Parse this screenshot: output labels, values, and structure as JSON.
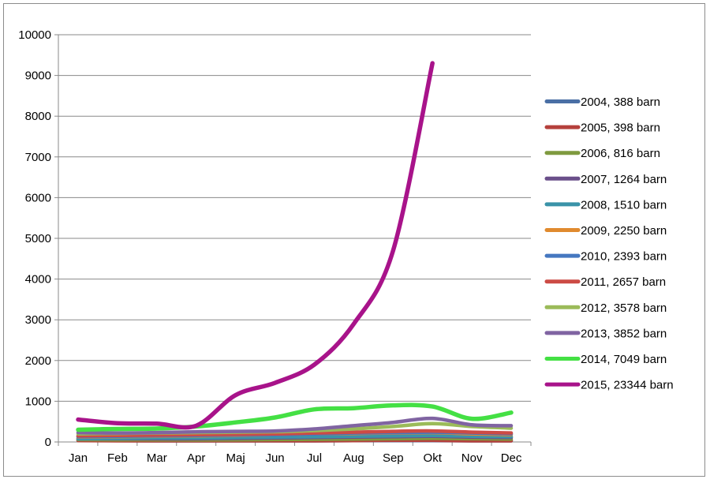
{
  "chart_data": {
    "type": "line",
    "title": "",
    "xlabel": "",
    "ylabel": "",
    "ylim": [
      0,
      10000
    ],
    "yticks": [
      0,
      1000,
      2000,
      3000,
      4000,
      5000,
      6000,
      7000,
      8000,
      9000,
      10000
    ],
    "grid": "horizontal",
    "legend_position": "right",
    "categories": [
      "Jan",
      "Feb",
      "Mar",
      "Apr",
      "Maj",
      "Jun",
      "Jul",
      "Aug",
      "Sep",
      "Okt",
      "Nov",
      "Dec"
    ],
    "series": [
      {
        "name": "2004, 388 barn",
        "color": "#4a6fa5",
        "values": [
          40,
          35,
          30,
          30,
          30,
          30,
          30,
          35,
          35,
          35,
          30,
          30
        ]
      },
      {
        "name": "2005, 398 barn",
        "color": "#b5403c",
        "values": [
          35,
          30,
          30,
          30,
          30,
          30,
          30,
          35,
          40,
          40,
          30,
          30
        ]
      },
      {
        "name": "2006, 816 barn",
        "color": "#7f9a3f",
        "values": [
          60,
          55,
          55,
          50,
          55,
          60,
          65,
          70,
          80,
          90,
          80,
          70
        ]
      },
      {
        "name": "2007, 1264 barn",
        "color": "#6a4f8a",
        "values": [
          80,
          80,
          80,
          80,
          90,
          100,
          110,
          120,
          130,
          140,
          120,
          110
        ]
      },
      {
        "name": "2008, 1510 barn",
        "color": "#3a93a8",
        "values": [
          80,
          90,
          100,
          100,
          110,
          120,
          130,
          140,
          150,
          160,
          140,
          130
        ]
      },
      {
        "name": "2009, 2250 barn",
        "color": "#e08a2e",
        "values": [
          120,
          130,
          140,
          150,
          160,
          180,
          200,
          210,
          220,
          230,
          200,
          180
        ]
      },
      {
        "name": "2010, 2393 barn",
        "color": "#4577c0",
        "values": [
          130,
          140,
          150,
          160,
          170,
          180,
          200,
          220,
          230,
          240,
          220,
          200
        ]
      },
      {
        "name": "2011, 2657 barn",
        "color": "#cc4b45",
        "values": [
          150,
          160,
          170,
          180,
          190,
          200,
          220,
          240,
          260,
          270,
          240,
          220
        ]
      },
      {
        "name": "2012, 3578 barn",
        "color": "#9bbb59",
        "values": [
          200,
          210,
          220,
          230,
          240,
          250,
          280,
          320,
          380,
          450,
          380,
          340
        ]
      },
      {
        "name": "2013, 3852 barn",
        "color": "#8064a2",
        "values": [
          230,
          220,
          230,
          250,
          260,
          270,
          320,
          400,
          480,
          580,
          420,
          400
        ]
      },
      {
        "name": "2014, 7049 barn",
        "color": "#44e044",
        "values": [
          300,
          320,
          330,
          380,
          480,
          600,
          800,
          830,
          900,
          870,
          570,
          720
        ]
      },
      {
        "name": "2015, 23344 barn",
        "color": "#a8138a",
        "values": [
          550,
          460,
          450,
          400,
          1150,
          1450,
          1900,
          2900,
          4700,
          9300,
          null,
          null
        ]
      }
    ]
  }
}
